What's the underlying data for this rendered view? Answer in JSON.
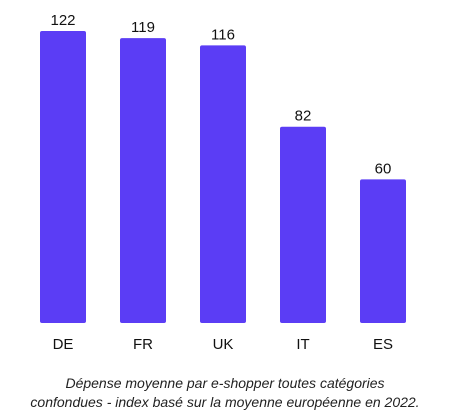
{
  "chart_data": {
    "type": "bar",
    "categories": [
      "DE",
      "FR",
      "UK",
      "IT",
      "ES"
    ],
    "values": [
      122,
      119,
      116,
      82,
      60
    ],
    "data_labels": [
      "122",
      "119",
      "116",
      "82",
      "60"
    ],
    "bar_color": "#5b3df5",
    "ylim": [
      0,
      122
    ],
    "grid": false,
    "title": "",
    "xlabel": "",
    "ylabel": ""
  },
  "caption": {
    "line1": "Dépense moyenne par e-shopper toutes catégories",
    "line2": "confondues - index basé sur la moyenne européenne en 2022."
  }
}
